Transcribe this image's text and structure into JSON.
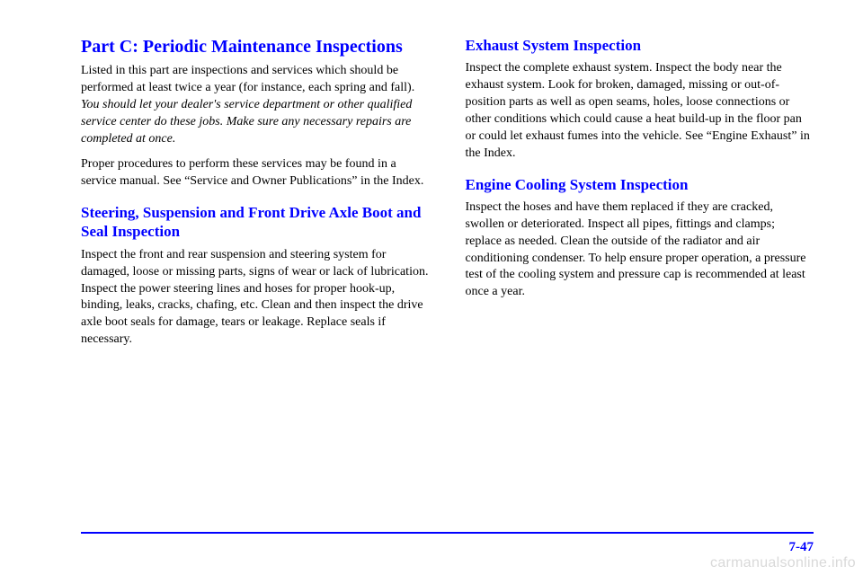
{
  "left": {
    "title": "Part C: Periodic Maintenance Inspections",
    "intro1_a": "Listed in this part are inspections and services which should be performed at least twice a year (for instance, each spring and fall). ",
    "intro1_b": "You should let your dealer's service department or other qualified service center do these jobs. Make sure any necessary repairs are completed at once.",
    "intro2": "Proper procedures to perform these services may be found in a service manual. See “Service and Owner Publications” in the Index.",
    "sub1_title": "Steering, Suspension and Front Drive Axle Boot and Seal Inspection",
    "sub1_body": "Inspect the front and rear suspension and steering system for damaged, loose or missing parts, signs of wear or lack of lubrication. Inspect the power steering lines and hoses for proper hook-up, binding, leaks, cracks, chafing, etc. Clean and then inspect the drive axle boot seals for damage, tears or leakage. Replace seals if necessary."
  },
  "right": {
    "sub2_title": "Exhaust System Inspection",
    "sub2_body": "Inspect the complete exhaust system. Inspect the body near the exhaust system. Look for broken, damaged, missing or out-of-position parts as well as open seams, holes, loose connections or other conditions which could cause a heat build-up in the floor pan or could let exhaust fumes into the vehicle. See “Engine Exhaust” in the Index.",
    "sub3_title": "Engine Cooling System Inspection",
    "sub3_body": "Inspect the hoses and have them replaced if they are cracked, swollen or deteriorated. Inspect all pipes, fittings and clamps; replace as needed. Clean the outside of the radiator and air conditioning condenser. To help ensure proper operation, a pressure test of the cooling system and pressure cap is recommended at least once a year."
  },
  "page_number": "7-47",
  "watermark": "carmanualsonline.info",
  "colors": {
    "heading": "#0000ff",
    "text": "#000000",
    "rule": "#0000ff",
    "watermark": "#d9d9d9",
    "background": "#ffffff"
  }
}
